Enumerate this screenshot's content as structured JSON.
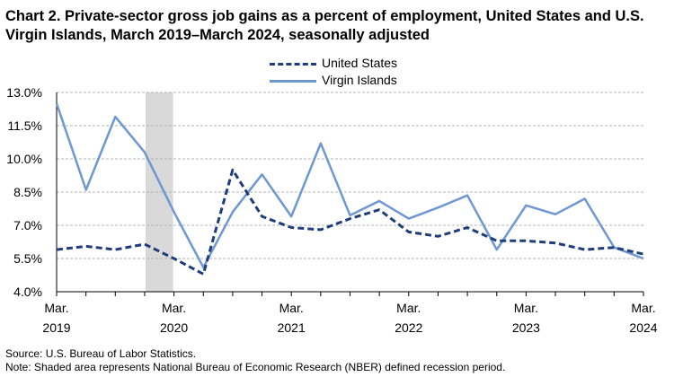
{
  "chart_data": {
    "type": "line",
    "title": "Chart 2. Private-sector gross job gains as a percent of employment, United States and U.S. Virgin Islands, March 2019–March 2024, seasonally adjusted",
    "categories": [
      "Mar. 2019",
      "Jun. 2019",
      "Sep. 2019",
      "Dec. 2019",
      "Mar. 2020",
      "Jun. 2020",
      "Sep. 2020",
      "Dec. 2020",
      "Mar. 2021",
      "Jun. 2021",
      "Sep. 2021",
      "Dec. 2021",
      "Mar. 2022",
      "Jun. 2022",
      "Sep. 2022",
      "Dec. 2022",
      "Mar. 2023",
      "Jun. 2023",
      "Sep. 2023",
      "Dec. 2023",
      "Mar. 2024"
    ],
    "x_tick_labels": [
      {
        "month": "Mar.",
        "year": "2019",
        "index": 0
      },
      {
        "month": "Mar.",
        "year": "2020",
        "index": 4
      },
      {
        "month": "Mar.",
        "year": "2021",
        "index": 8
      },
      {
        "month": "Mar.",
        "year": "2022",
        "index": 12
      },
      {
        "month": "Mar.",
        "year": "2023",
        "index": 16
      },
      {
        "month": "Mar.",
        "year": "2024",
        "index": 20
      }
    ],
    "y_ticks": [
      "4.0%",
      "5.5%",
      "7.0%",
      "8.5%",
      "10.0%",
      "11.5%",
      "13.0%"
    ],
    "ylim": [
      4.0,
      13.0
    ],
    "grid": true,
    "legend_position": "top-center",
    "recession_shading": {
      "start": "Dec. 2019",
      "end": "Mar. 2020",
      "color": "#d9d9d9"
    },
    "series": [
      {
        "name": "United States",
        "style": "dashed",
        "color": "#1f3d7a",
        "values": [
          5.9,
          6.05,
          5.9,
          6.15,
          5.5,
          4.8,
          9.5,
          7.4,
          6.9,
          6.8,
          7.3,
          7.7,
          6.7,
          6.5,
          6.9,
          6.3,
          6.3,
          6.2,
          5.9,
          6.0,
          5.7
        ]
      },
      {
        "name": "Virgin Islands",
        "style": "solid",
        "color": "#6f97d1",
        "values": [
          12.5,
          8.6,
          11.9,
          10.3,
          7.6,
          5.1,
          7.6,
          9.3,
          7.4,
          10.7,
          7.45,
          8.1,
          7.3,
          7.8,
          8.35,
          5.9,
          7.9,
          7.5,
          8.2,
          6.0,
          5.5
        ]
      }
    ]
  },
  "footer": {
    "source": "Source: U.S. Bureau of Labor Statistics.",
    "note": "Note: Shaded area represents National Bureau of Economic Research (NBER) defined recession period."
  }
}
